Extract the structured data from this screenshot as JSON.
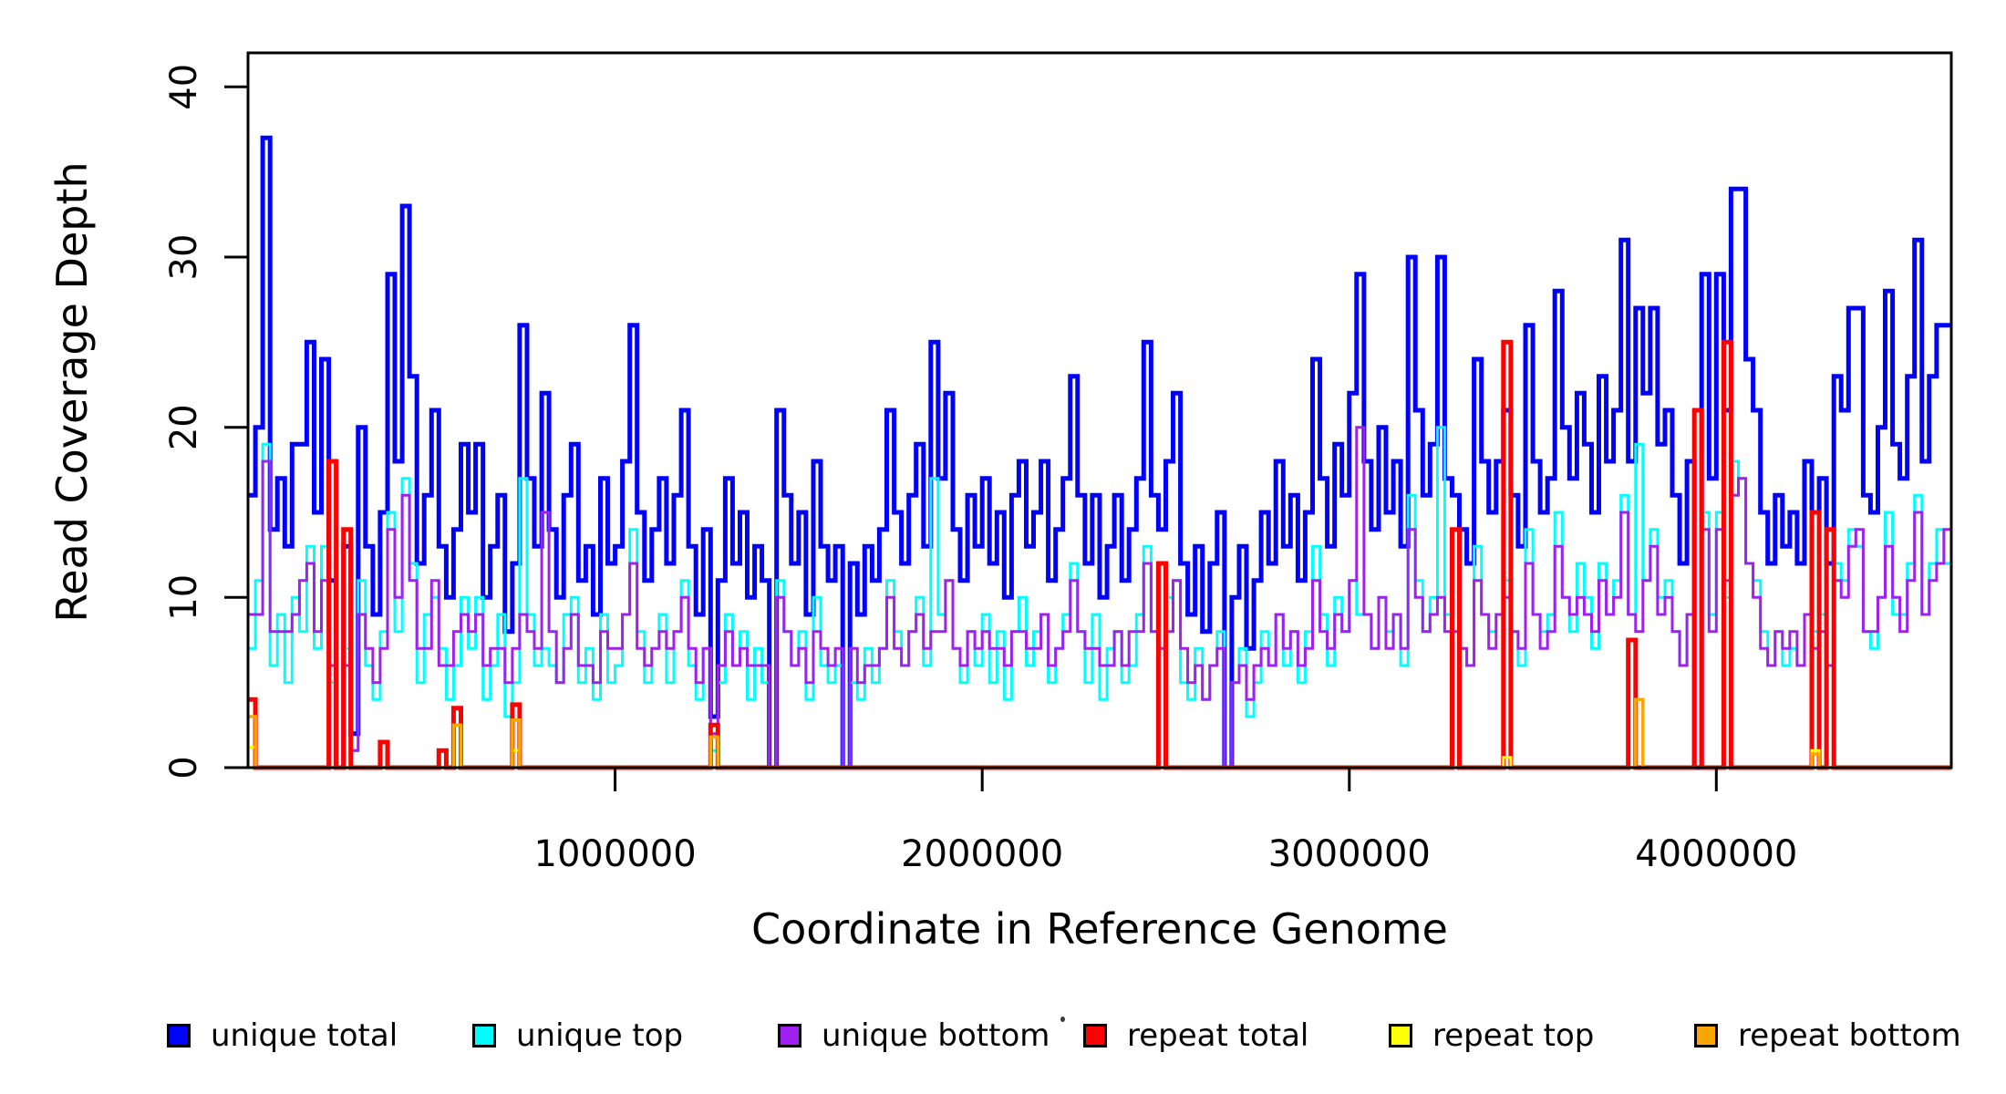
{
  "figure": {
    "background": "#ffffff",
    "box_color": "#000000"
  },
  "axes": {
    "x_title": "Coordinate in Reference Genome",
    "y_title": "Read Coverage Depth",
    "x_tick_labels": [
      "1000000",
      "2000000",
      "3000000",
      "4000000"
    ],
    "y_tick_labels": [
      "0",
      "10",
      "20",
      "30",
      "40"
    ]
  },
  "chart_data": {
    "type": "line",
    "subtype": "step-coverage",
    "title": "",
    "xlabel": "Coordinate in Reference Genome",
    "ylabel": "Read Coverage Depth",
    "xlim": [
      0,
      4640000
    ],
    "ylim": [
      0,
      42
    ],
    "xticks": [
      1000000,
      2000000,
      3000000,
      4000000
    ],
    "yticks": [
      0,
      10,
      20,
      30,
      40
    ],
    "grid": false,
    "legend_position": "bottom",
    "bin_size": 20000,
    "n_bins": 232,
    "series": [
      {
        "id": "unique-total",
        "name": "unique total",
        "color": "#0000FF",
        "lwd": 5,
        "values": [
          16,
          20,
          37,
          14,
          17,
          13,
          19,
          19,
          25,
          15,
          24,
          11,
          0,
          13,
          2,
          20,
          13,
          9,
          15,
          29,
          18,
          33,
          23,
          12,
          16,
          21,
          13,
          10,
          14,
          19,
          15,
          19,
          10,
          13,
          16,
          8,
          12,
          26,
          17,
          13,
          22,
          14,
          10,
          16,
          19,
          11,
          13,
          9,
          17,
          12,
          13,
          18,
          26,
          15,
          11,
          14,
          17,
          12,
          16,
          21,
          13,
          9,
          14,
          3,
          11,
          17,
          12,
          15,
          10,
          13,
          11,
          0,
          21,
          16,
          12,
          15,
          9,
          18,
          13,
          11,
          13,
          0,
          12,
          9,
          13,
          11,
          14,
          21,
          15,
          12,
          16,
          19,
          13,
          25,
          17,
          22,
          14,
          11,
          16,
          13,
          17,
          12,
          15,
          10,
          16,
          18,
          13,
          15,
          18,
          11,
          14,
          17,
          23,
          16,
          12,
          16,
          10,
          13,
          16,
          11,
          14,
          17,
          25,
          16,
          14,
          18,
          22,
          12,
          9,
          13,
          8,
          12,
          15,
          0,
          10,
          13,
          7,
          11,
          15,
          12,
          18,
          13,
          16,
          11,
          15,
          24,
          17,
          13,
          19,
          16,
          22,
          29,
          18,
          14,
          20,
          15,
          18,
          13,
          30,
          21,
          16,
          19,
          30,
          17,
          16,
          14,
          12,
          24,
          18,
          15,
          18,
          21,
          16,
          13,
          26,
          18,
          15,
          17,
          28,
          20,
          17,
          22,
          19,
          15,
          23,
          18,
          21,
          31,
          18,
          27,
          22,
          27,
          19,
          21,
          16,
          12,
          18,
          0,
          29,
          17,
          29,
          21,
          34,
          34,
          24,
          21,
          15,
          12,
          16,
          13,
          15,
          12,
          18,
          15,
          17,
          12,
          23,
          21,
          27,
          27,
          16,
          15,
          20,
          28,
          19,
          17,
          23,
          31,
          18,
          23,
          26,
          26
        ]
      },
      {
        "id": "unique-top",
        "name": "unique top",
        "color": "#00FFFF",
        "lwd": 3,
        "values": [
          7,
          11,
          19,
          6,
          9,
          5,
          10,
          8,
          13,
          7,
          13,
          5,
          0,
          7,
          1,
          11,
          6,
          4,
          8,
          15,
          8,
          17,
          12,
          5,
          9,
          10,
          7,
          4,
          6,
          10,
          7,
          10,
          4,
          6,
          9,
          3,
          5,
          17,
          9,
          6,
          7,
          6,
          5,
          9,
          10,
          5,
          7,
          4,
          9,
          5,
          6,
          9,
          14,
          8,
          5,
          7,
          9,
          5,
          8,
          11,
          6,
          4,
          7,
          1,
          5,
          9,
          6,
          8,
          4,
          7,
          5,
          0,
          11,
          8,
          6,
          8,
          4,
          10,
          6,
          5,
          6,
          0,
          5,
          4,
          7,
          5,
          7,
          11,
          8,
          6,
          8,
          10,
          6,
          17,
          9,
          11,
          7,
          5,
          8,
          6,
          9,
          5,
          8,
          4,
          8,
          10,
          6,
          8,
          9,
          5,
          7,
          9,
          12,
          8,
          5,
          9,
          4,
          7,
          8,
          5,
          6,
          9,
          13,
          8,
          7,
          10,
          11,
          5,
          4,
          7,
          4,
          6,
          8,
          0,
          5,
          7,
          3,
          5,
          8,
          6,
          9,
          6,
          8,
          5,
          8,
          13,
          9,
          6,
          10,
          8,
          11,
          9,
          9,
          7,
          10,
          8,
          9,
          6,
          16,
          11,
          8,
          10,
          20,
          9,
          8,
          7,
          6,
          13,
          9,
          8,
          9,
          11,
          8,
          6,
          14,
          9,
          8,
          9,
          15,
          10,
          8,
          12,
          10,
          7,
          12,
          9,
          11,
          16,
          9,
          19,
          11,
          14,
          10,
          11,
          8,
          6,
          9,
          0,
          15,
          9,
          15,
          10,
          18,
          17,
          12,
          11,
          8,
          6,
          8,
          6,
          7,
          6,
          9,
          8,
          9,
          6,
          12,
          11,
          14,
          13,
          8,
          7,
          10,
          15,
          9,
          9,
          12,
          16,
          9,
          12,
          14,
          12
        ]
      },
      {
        "id": "unique-bottom",
        "name": "unique bottom",
        "color": "#A020F0",
        "lwd": 3,
        "values": [
          9,
          9,
          18,
          8,
          8,
          8,
          9,
          11,
          12,
          8,
          11,
          6,
          0,
          6,
          1,
          9,
          7,
          5,
          7,
          14,
          10,
          16,
          11,
          7,
          7,
          11,
          6,
          6,
          8,
          9,
          8,
          9,
          6,
          7,
          7,
          5,
          7,
          9,
          8,
          7,
          15,
          8,
          5,
          7,
          9,
          6,
          6,
          5,
          8,
          7,
          7,
          9,
          12,
          7,
          6,
          7,
          8,
          7,
          8,
          10,
          7,
          5,
          7,
          2,
          6,
          8,
          6,
          7,
          6,
          6,
          6,
          0,
          10,
          8,
          6,
          7,
          5,
          8,
          7,
          6,
          7,
          0,
          7,
          5,
          6,
          6,
          7,
          10,
          7,
          6,
          8,
          9,
          7,
          8,
          8,
          11,
          7,
          6,
          8,
          7,
          8,
          7,
          7,
          6,
          8,
          8,
          7,
          7,
          9,
          6,
          7,
          8,
          11,
          8,
          7,
          7,
          6,
          6,
          8,
          6,
          8,
          8,
          12,
          8,
          7,
          8,
          11,
          7,
          5,
          6,
          4,
          6,
          7,
          0,
          5,
          6,
          4,
          6,
          7,
          6,
          9,
          7,
          8,
          6,
          7,
          11,
          8,
          7,
          9,
          8,
          11,
          20,
          9,
          7,
          10,
          7,
          9,
          7,
          14,
          10,
          8,
          9,
          10,
          8,
          8,
          7,
          6,
          11,
          9,
          7,
          9,
          10,
          8,
          7,
          12,
          9,
          7,
          8,
          13,
          10,
          9,
          10,
          9,
          8,
          11,
          9,
          10,
          15,
          9,
          8,
          11,
          13,
          9,
          10,
          8,
          6,
          9,
          0,
          14,
          8,
          14,
          11,
          16,
          17,
          12,
          10,
          7,
          6,
          8,
          7,
          8,
          6,
          9,
          7,
          8,
          6,
          11,
          10,
          13,
          14,
          8,
          8,
          10,
          13,
          10,
          8,
          11,
          15,
          9,
          11,
          12,
          14
        ]
      },
      {
        "id": "repeat-total",
        "name": "repeat total",
        "color": "#FF0000",
        "lwd": 5,
        "sparse": true,
        "default": 0,
        "points": {
          "0": 4,
          "11": 18,
          "13": 14,
          "18": 1.5,
          "26": 1,
          "28": 3.5,
          "36": 3.7,
          "63": 2.5,
          "124": 12,
          "164": 14,
          "171": 25,
          "188": 7.5,
          "197": 21,
          "201": 25,
          "213": 15,
          "215": 14
        }
      },
      {
        "id": "repeat-top",
        "name": "repeat top",
        "color": "#FFFF00",
        "lwd": 3,
        "sparse": true,
        "default": 0,
        "points": {
          "0": 1.2,
          "36": 1,
          "171": 0.6,
          "213": 1
        }
      },
      {
        "id": "repeat-bottom",
        "name": "repeat bottom",
        "color": "#FFA500",
        "lwd": 3.5,
        "sparse": true,
        "default": 0,
        "points": {
          "0": 3,
          "28": 2.5,
          "36": 2.8,
          "63": 1.8,
          "189": 4,
          "213": 0.8
        }
      }
    ]
  },
  "legend": {
    "items": [
      {
        "label": "unique total",
        "color": "#0000FF"
      },
      {
        "label": "unique top",
        "color": "#00FFFF"
      },
      {
        "label": "unique bottom",
        "color": "#A020F0"
      },
      {
        "label": "repeat total",
        "color": "#FF0000"
      },
      {
        "label": "repeat top",
        "color": "#FFFF00"
      },
      {
        "label": "repeat bottom",
        "color": "#FFA500"
      }
    ]
  }
}
